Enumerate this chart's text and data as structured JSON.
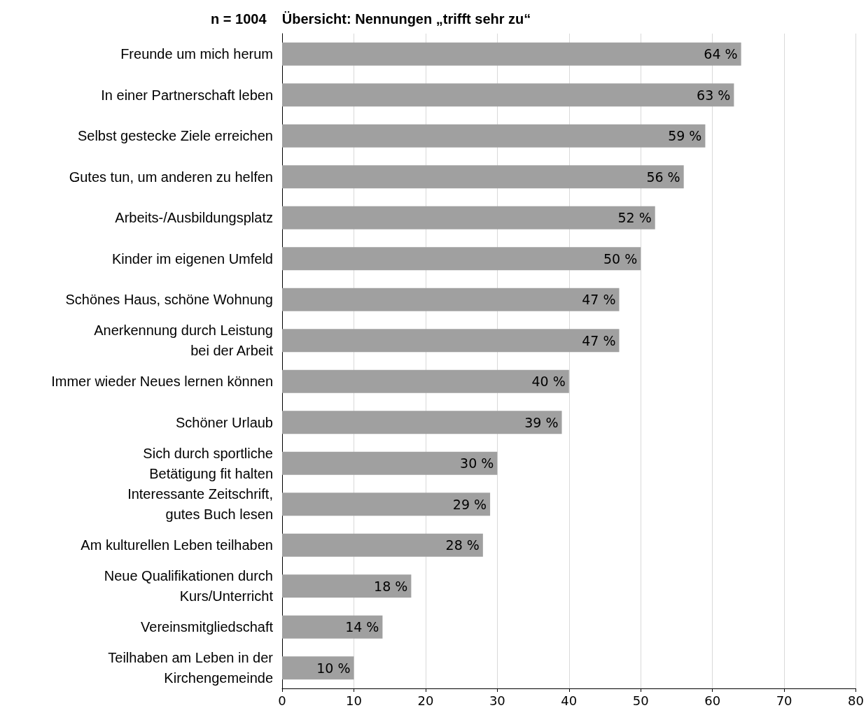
{
  "chart_data": {
    "type": "bar",
    "orientation": "horizontal",
    "title": "n = 1004    Übersicht: Nennungen „trifft sehr zu“",
    "categories": [
      "Freunde um mich herum",
      "In einer Partnerschaft leben",
      "Selbst gestecke Ziele erreichen",
      "Gutes tun, um anderen zu helfen",
      "Arbeits-/Ausbildungsplatz",
      "Kinder im eigenen Umfeld",
      "Schönes Haus, schöne Wohnung",
      "Anerkennung durch Leistung\nbei der Arbeit",
      "Immer wieder Neues lernen können",
      "Schöner Urlaub",
      "Sich durch sportliche\nBetätigung fit halten",
      "Interessante Zeitschrift,\ngutes Buch lesen",
      "Am kulturellen Leben teilhaben",
      "Neue Qualifikationen durch\nKurs/Unterricht",
      "Vereinsmitgliedschaft",
      "Teilhaben am Leben in der\nKirchengemeinde"
    ],
    "values": [
      64,
      63,
      59,
      56,
      52,
      50,
      47,
      47,
      40,
      39,
      30,
      29,
      28,
      18,
      14,
      10
    ],
    "value_labels": [
      "64 %",
      "63 %",
      "59 %",
      "56 %",
      "52 %",
      "50 %",
      "47 %",
      "47 %",
      "40 %",
      "39 %",
      "30 %",
      "29 %",
      "28 %",
      "18 %",
      "14 %",
      "10 %"
    ],
    "color": "#a0a0a0",
    "xlim": [
      0,
      80
    ],
    "xticks": [
      0,
      10,
      20,
      30,
      40,
      50,
      60,
      70,
      80
    ],
    "grid": "x"
  }
}
